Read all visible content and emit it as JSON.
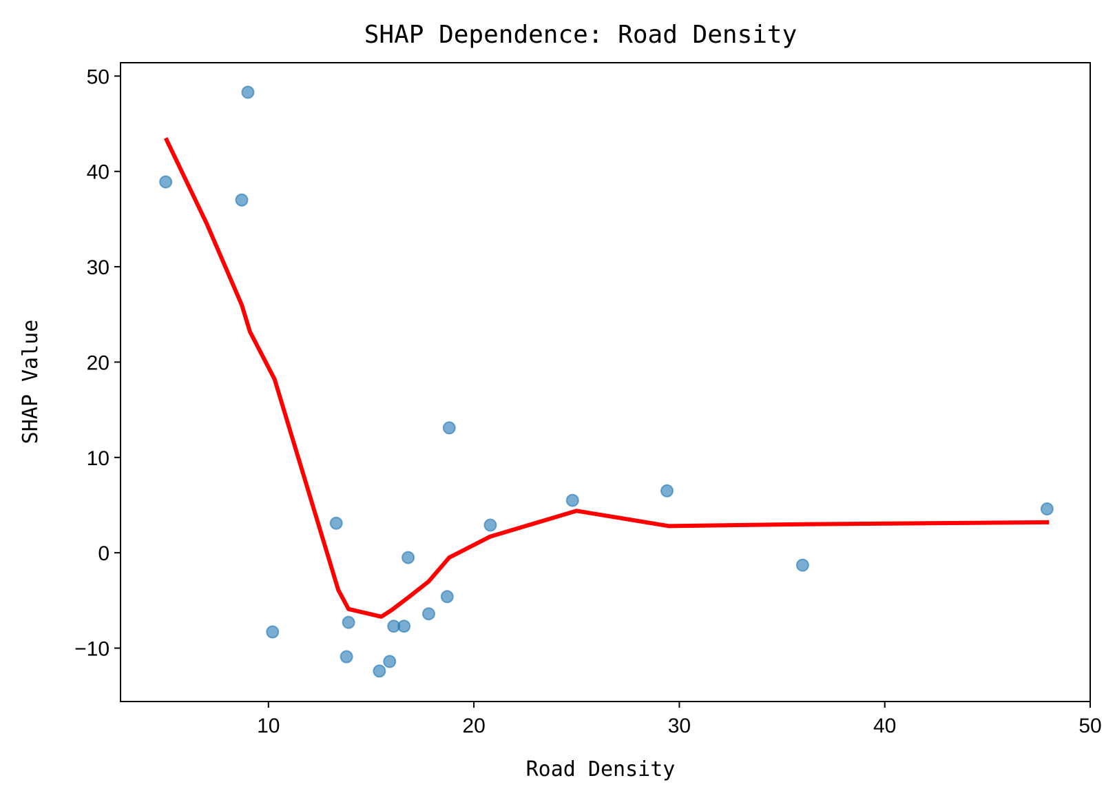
{
  "chart_data": {
    "type": "scatter",
    "title": "SHAP Dependence: Road Density",
    "xlabel": "Road Density",
    "ylabel": "SHAP Value",
    "xlim": [
      2.8,
      50
    ],
    "ylim": [
      -15.6,
      51.4
    ],
    "xticks": [
      10,
      20,
      30,
      40,
      50
    ],
    "yticks": [
      -10,
      0,
      10,
      20,
      30,
      40,
      50
    ],
    "xtick_labels": [
      "10",
      "20",
      "30",
      "40",
      "50"
    ],
    "ytick_labels": [
      "−10",
      "0",
      "10",
      "20",
      "30",
      "40",
      "50"
    ],
    "grid": false,
    "colors": {
      "points": "#1f77b4",
      "trend": "#ff0000"
    },
    "series": [
      {
        "type": "scatter",
        "points": [
          [
            5.0,
            38.9
          ],
          [
            8.7,
            37.0
          ],
          [
            9.0,
            48.3
          ],
          [
            10.2,
            -8.3
          ],
          [
            13.3,
            3.1
          ],
          [
            13.8,
            -10.9
          ],
          [
            13.9,
            -7.3
          ],
          [
            15.4,
            -12.4
          ],
          [
            15.9,
            -11.4
          ],
          [
            16.1,
            -7.7
          ],
          [
            16.6,
            -7.7
          ],
          [
            16.8,
            -0.5
          ],
          [
            17.8,
            -6.4
          ],
          [
            18.7,
            -4.6
          ],
          [
            18.8,
            13.1
          ],
          [
            20.8,
            2.9
          ],
          [
            24.8,
            5.5
          ],
          [
            29.4,
            6.5
          ],
          [
            36.0,
            -1.3
          ],
          [
            47.9,
            4.6
          ]
        ]
      },
      {
        "type": "line",
        "points": [
          [
            5.0,
            43.5
          ],
          [
            7.0,
            34.5
          ],
          [
            8.7,
            26.0
          ],
          [
            9.1,
            23.2
          ],
          [
            10.3,
            18.2
          ],
          [
            13.4,
            -3.9
          ],
          [
            13.9,
            -5.9
          ],
          [
            15.5,
            -6.7
          ],
          [
            16.0,
            -6.0
          ],
          [
            16.8,
            -4.7
          ],
          [
            17.8,
            -3.0
          ],
          [
            18.8,
            -0.5
          ],
          [
            20.8,
            1.7
          ],
          [
            25.0,
            4.4
          ],
          [
            29.5,
            2.8
          ],
          [
            36.0,
            3.0
          ],
          [
            48.0,
            3.2
          ]
        ]
      }
    ]
  }
}
